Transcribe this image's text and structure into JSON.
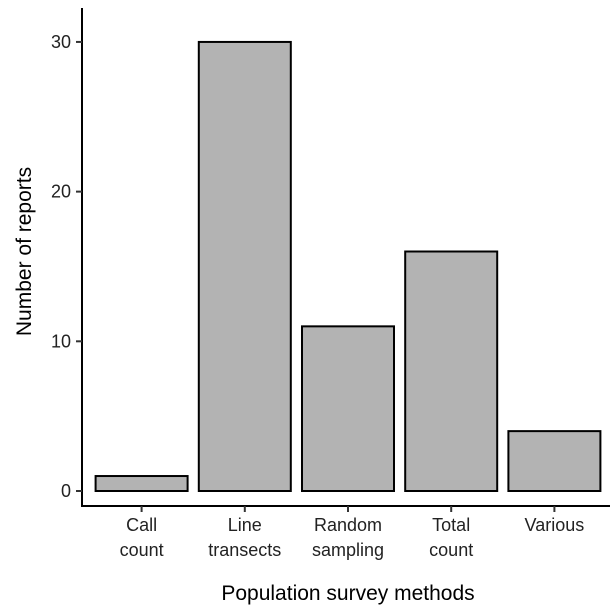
{
  "chart_data": {
    "type": "bar",
    "categories": [
      [
        "Call",
        "count"
      ],
      [
        "Line",
        "transects"
      ],
      [
        "Random",
        "sampling"
      ],
      [
        "Total",
        "count"
      ],
      [
        "Various"
      ]
    ],
    "values": [
      1,
      30,
      11,
      16,
      4
    ],
    "xlabel": "Population survey methods",
    "ylabel": "Number of reports",
    "ylim": [
      0,
      32
    ],
    "yticks": [
      0,
      10,
      20,
      30
    ],
    "grid": false,
    "bar_color": "#b3b3b3",
    "bar_edge_color": "#000000"
  }
}
